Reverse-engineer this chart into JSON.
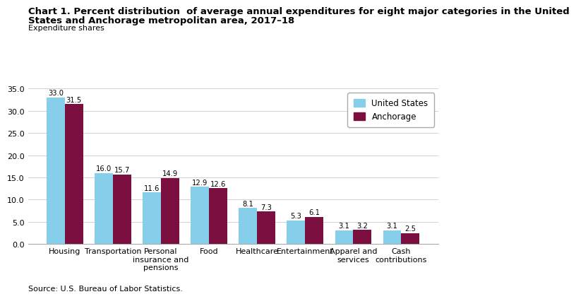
{
  "title_line1": "Chart 1. Percent distribution  of average annual expenditures for eight major categories in the United",
  "title_line2": "States and Anchorage metropolitan area, 2017–18",
  "ylabel": "Expenditure shares",
  "categories": [
    "Housing",
    "Transportation",
    "Personal\ninsurance and\npensions",
    "Food",
    "Healthcare",
    "Entertainment",
    "Apparel and\nservices",
    "Cash\ncontributions"
  ],
  "us_values": [
    33.0,
    16.0,
    11.6,
    12.9,
    8.1,
    5.3,
    3.1,
    3.1
  ],
  "anc_values": [
    31.5,
    15.7,
    14.9,
    12.6,
    7.3,
    6.1,
    3.2,
    2.5
  ],
  "us_color": "#87CEEB",
  "anc_color": "#7B1040",
  "us_label": "United States",
  "anc_label": "Anchorage",
  "ylim": [
    0,
    35.0
  ],
  "yticks": [
    0.0,
    5.0,
    10.0,
    15.0,
    20.0,
    25.0,
    30.0,
    35.0
  ],
  "bar_width": 0.38,
  "source": "Source: U.S. Bureau of Labor Statistics.",
  "label_fontsize": 7.2,
  "title_fontsize": 9.5,
  "ylabel_fontsize": 8,
  "tick_fontsize": 8,
  "legend_fontsize": 8.5
}
